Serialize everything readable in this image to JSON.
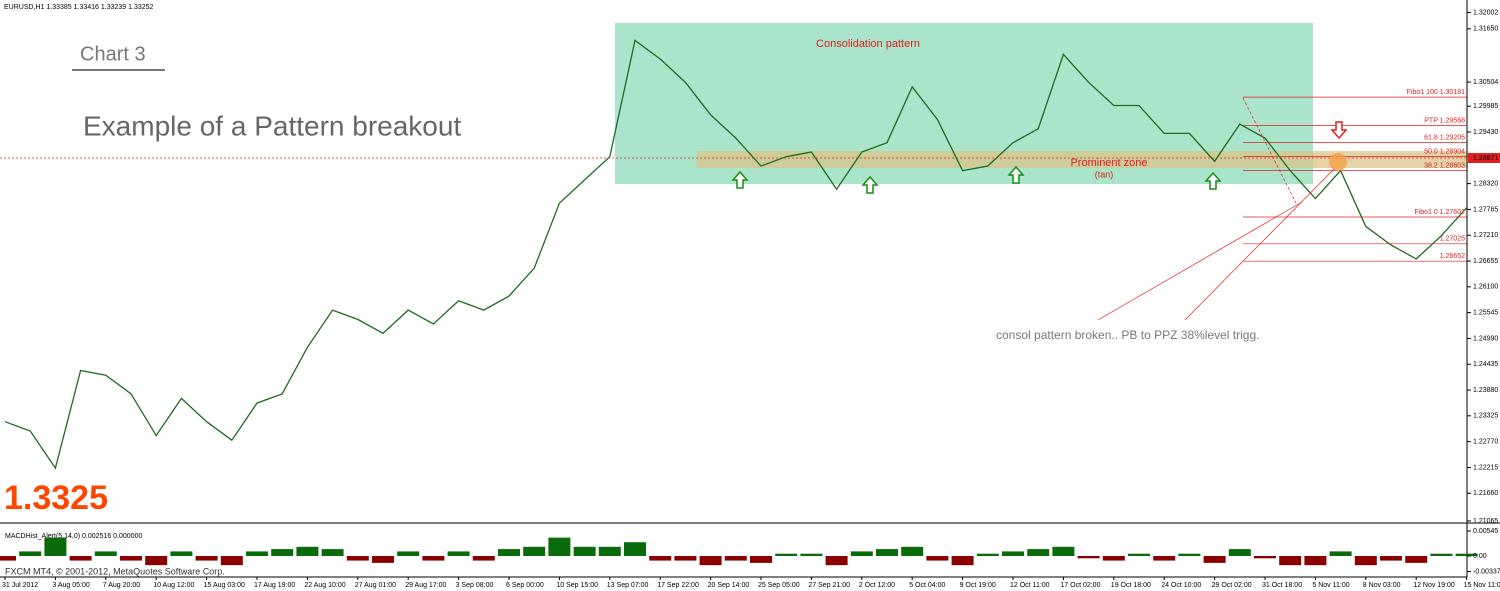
{
  "header": {
    "symbol": "EURUSD,H1 1.33385 1.33416 1.33239 1.33252",
    "chart_label": "Chart 3",
    "headline": "Example of a Pattern breakout",
    "big_price": "1.3325",
    "footer": "FXCM MT4, © 2001-2012, MetaQuotes Software Corp."
  },
  "chart_data": {
    "type": "line",
    "color": "#1e6b1e",
    "categories": [
      "31 Jul 2012",
      null,
      "3 Aug 05:00",
      null,
      "7 Aug 20:00",
      null,
      "10 Aug 12:00",
      null,
      "15 Aug 03:00",
      null,
      "17 Aug 19:00",
      null,
      "22 Aug 10:00",
      null,
      "27 Aug 01:00",
      null,
      "29 Aug 17:00",
      null,
      "3 Sep 08:00",
      null,
      "6 Sep 00:00",
      null,
      "10 Sep 15:00",
      null,
      "13 Sep 07:00",
      null,
      "17 Sep 22:00",
      null,
      "20 Sep 14:00",
      null,
      "25 Sep 05:00",
      null,
      "27 Sep 21:00",
      null,
      "2 Oct 12:00",
      null,
      "5 Oct 04:00",
      null,
      "9 Oct 19:00",
      null,
      "12 Oct 11:00",
      null,
      "17 Oct 02:00",
      null,
      "19 Oct 18:00",
      null,
      "24 Oct 10:00",
      null,
      "29 Oct 02:00",
      null,
      "31 Oct 18:00",
      null,
      "5 Nov 11:00",
      null,
      "8 Nov 03:00",
      null,
      "12 Nov 19:00",
      null,
      "15 Nov 11:00"
    ],
    "values": [
      1.232,
      1.23,
      1.222,
      1.243,
      1.242,
      1.238,
      1.229,
      1.237,
      1.232,
      1.228,
      1.236,
      1.238,
      1.248,
      1.256,
      1.254,
      1.251,
      1.256,
      1.253,
      1.258,
      1.256,
      1.259,
      1.265,
      1.279,
      1.284,
      1.289,
      1.314,
      1.31,
      1.305,
      1.298,
      1.293,
      1.287,
      1.289,
      1.29,
      1.282,
      1.29,
      1.292,
      1.304,
      1.297,
      1.286,
      1.287,
      1.292,
      1.295,
      1.311,
      1.305,
      1.3,
      1.3,
      1.294,
      1.294,
      1.288,
      1.296,
      1.293,
      1.286,
      1.28,
      1.286,
      1.274,
      1.27,
      1.267,
      1.272,
      1.278
    ],
    "ylim": [
      1.2102,
      1.3227
    ],
    "yticks": [
      1.32002,
      {
        "value": 1.3165,
        "label": "1.31650"
      },
      1.30504,
      1.29985,
      {
        "value": 1.2943,
        "label": "1.29430"
      },
      {
        "value": 1.2832,
        "label": "1.28320"
      },
      1.27765,
      {
        "value": 1.2721,
        "label": "1.27210"
      },
      1.26655,
      {
        "value": 1.261,
        "label": "1.26100"
      },
      1.25545,
      {
        "value": 1.2499,
        "label": "1.24990"
      },
      1.24435,
      {
        "value": 1.2388,
        "label": "1.23880"
      },
      1.23325,
      {
        "value": 1.2277,
        "label": "1.22770"
      },
      1.22215,
      {
        "value": 1.2166,
        "label": "1.21660"
      },
      1.21065
    ],
    "current_price": 1.28871,
    "levels": [
      {
        "value": 1.30181,
        "label": "Fibo1  100  1.30181"
      },
      {
        "value": 1.29568,
        "label": "PTP  1.29568"
      },
      {
        "value": 1.29205,
        "label": "61.8   1.29205"
      },
      {
        "value": 1.28904,
        "label": "50.0   1.28904"
      },
      {
        "value": 1.28603,
        "label": "38.2   1.28603"
      },
      {
        "value": 1.27602,
        "label": "Fibo1  0   1.27602"
      },
      {
        "value": 1.27025,
        "label": "1.27025"
      },
      {
        "value": 1.26652,
        "label": "1.26652"
      }
    ],
    "annotations": {
      "box": "Consolidation pattern",
      "zone": "Prominent zone",
      "zone_note": "(tan)",
      "comment": "consol pattern broken.. PB to PPZ 38%level trigg."
    },
    "macd": {
      "title": "MACDHist_Alert(5,14,0) 0.002516 0.000000",
      "ylim": [
        -0.00458,
        0.00632
      ],
      "yticks": [
        0.00545,
        {
          "value": 0,
          "label": "0.00"
        },
        -0.00337
      ],
      "values": [
        -0.001,
        0.001,
        0.004,
        -0.001,
        0.001,
        -0.001,
        -0.002,
        0.001,
        -0.001,
        -0.002,
        0.001,
        0.0015,
        0.002,
        0.0015,
        -0.001,
        -0.0015,
        0.001,
        -0.001,
        0.001,
        -0.001,
        0.0015,
        0.002,
        0.004,
        0.002,
        0.002,
        0.003,
        -0.001,
        -0.001,
        -0.002,
        -0.001,
        -0.0015,
        0.0005,
        0.0005,
        -0.002,
        0.001,
        0.0015,
        0.002,
        -0.001,
        -0.002,
        0.0005,
        0.001,
        0.0015,
        0.002,
        -0.0005,
        -0.001,
        0.0005,
        -0.001,
        0.0005,
        -0.0015,
        0.0015,
        -0.0005,
        -0.002,
        -0.002,
        0.001,
        -0.002,
        -0.001,
        -0.0015,
        0.0005,
        0.0005
      ]
    }
  }
}
